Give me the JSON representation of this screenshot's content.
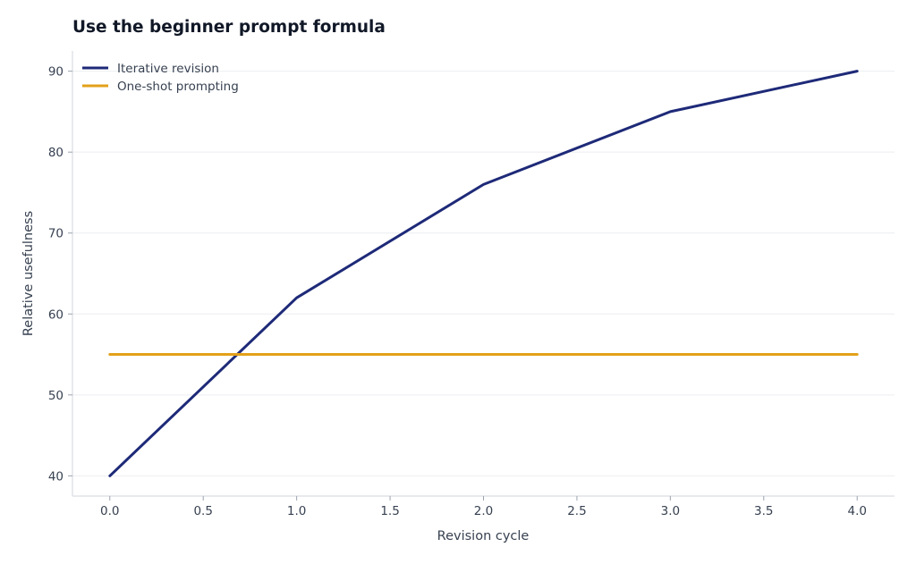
{
  "chart_data": {
    "type": "line",
    "title": "Use the beginner prompt formula",
    "xlabel": "Revision cycle",
    "ylabel": "Relative usefulness",
    "xlim": [
      -0.2,
      4.2
    ],
    "ylim": [
      37.5,
      92.5
    ],
    "x_ticks": [
      "0.0",
      "0.5",
      "1.0",
      "1.5",
      "2.0",
      "2.5",
      "3.0",
      "3.5",
      "4.0"
    ],
    "y_ticks": [
      "40",
      "50",
      "60",
      "70",
      "80",
      "90"
    ],
    "grid": "horizontal",
    "legend_position": "top-left",
    "series": [
      {
        "name": "Iterative revision",
        "color": "#1e2a78",
        "x": [
          0,
          1,
          2,
          3,
          4
        ],
        "y": [
          40,
          62,
          76,
          85,
          90
        ]
      },
      {
        "name": "One-shot prompting",
        "color": "#e3a019",
        "x": [
          0,
          1,
          2,
          3,
          4
        ],
        "y": [
          55,
          55,
          55,
          55,
          55
        ]
      }
    ]
  }
}
